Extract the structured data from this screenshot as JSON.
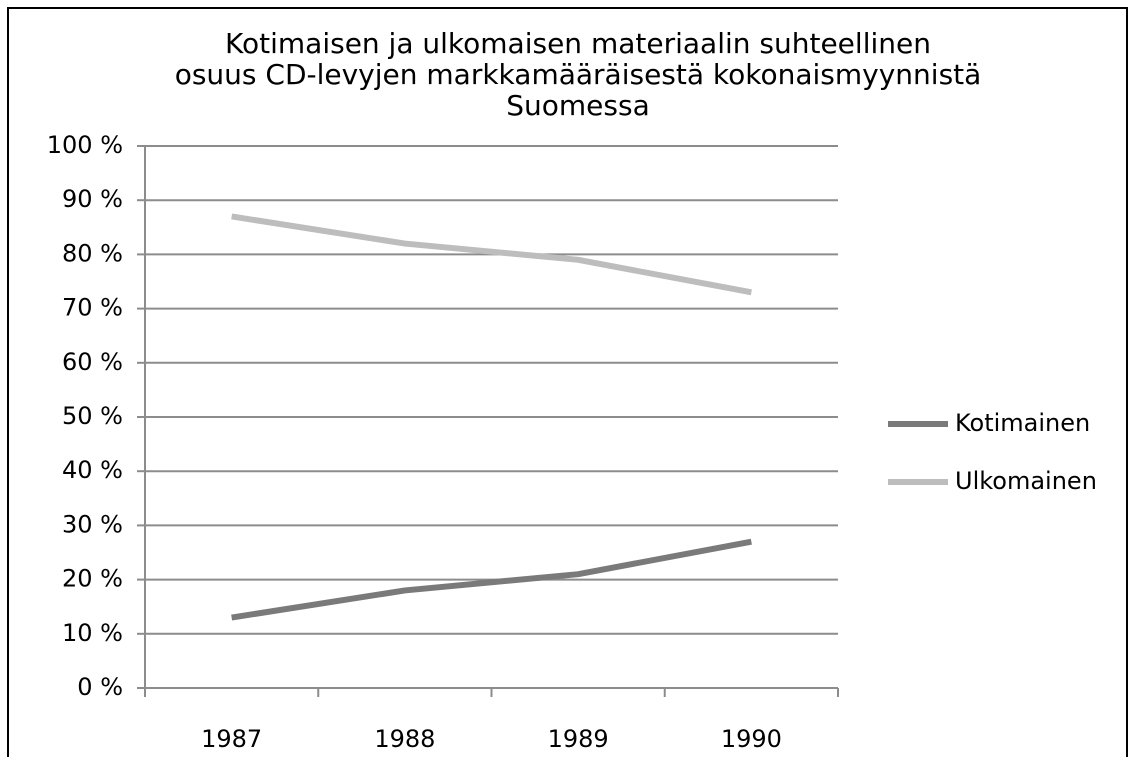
{
  "chart_data": {
    "type": "line",
    "title": [
      "Kotimaisen ja ulkomaisen materiaalin suhteellinen",
      "osuus CD-levyjen markkamääräisestä kokonaismyynnistä",
      "Suomessa"
    ],
    "categories": [
      "1987",
      "1988",
      "1989",
      "1990"
    ],
    "series": [
      {
        "name": "Kotimainen",
        "color": "#7a7a7a",
        "values": [
          13,
          18,
          21,
          27
        ]
      },
      {
        "name": "Ulkomainen",
        "color": "#bdbdbd",
        "values": [
          87,
          82,
          79,
          73
        ]
      }
    ],
    "ylim": [
      0,
      100
    ],
    "yticks": [
      {
        "value": 0,
        "label": "0 %"
      },
      {
        "value": 10,
        "label": "10 %"
      },
      {
        "value": 20,
        "label": "20 %"
      },
      {
        "value": 30,
        "label": "30 %"
      },
      {
        "value": 40,
        "label": "40 %"
      },
      {
        "value": 50,
        "label": "50 %"
      },
      {
        "value": 60,
        "label": "60 %"
      },
      {
        "value": 70,
        "label": "70 %"
      },
      {
        "value": 80,
        "label": "80 %"
      },
      {
        "value": 90,
        "label": "90 %"
      },
      {
        "value": 100,
        "label": "100 %"
      }
    ],
    "grid": true,
    "legend": "right"
  }
}
